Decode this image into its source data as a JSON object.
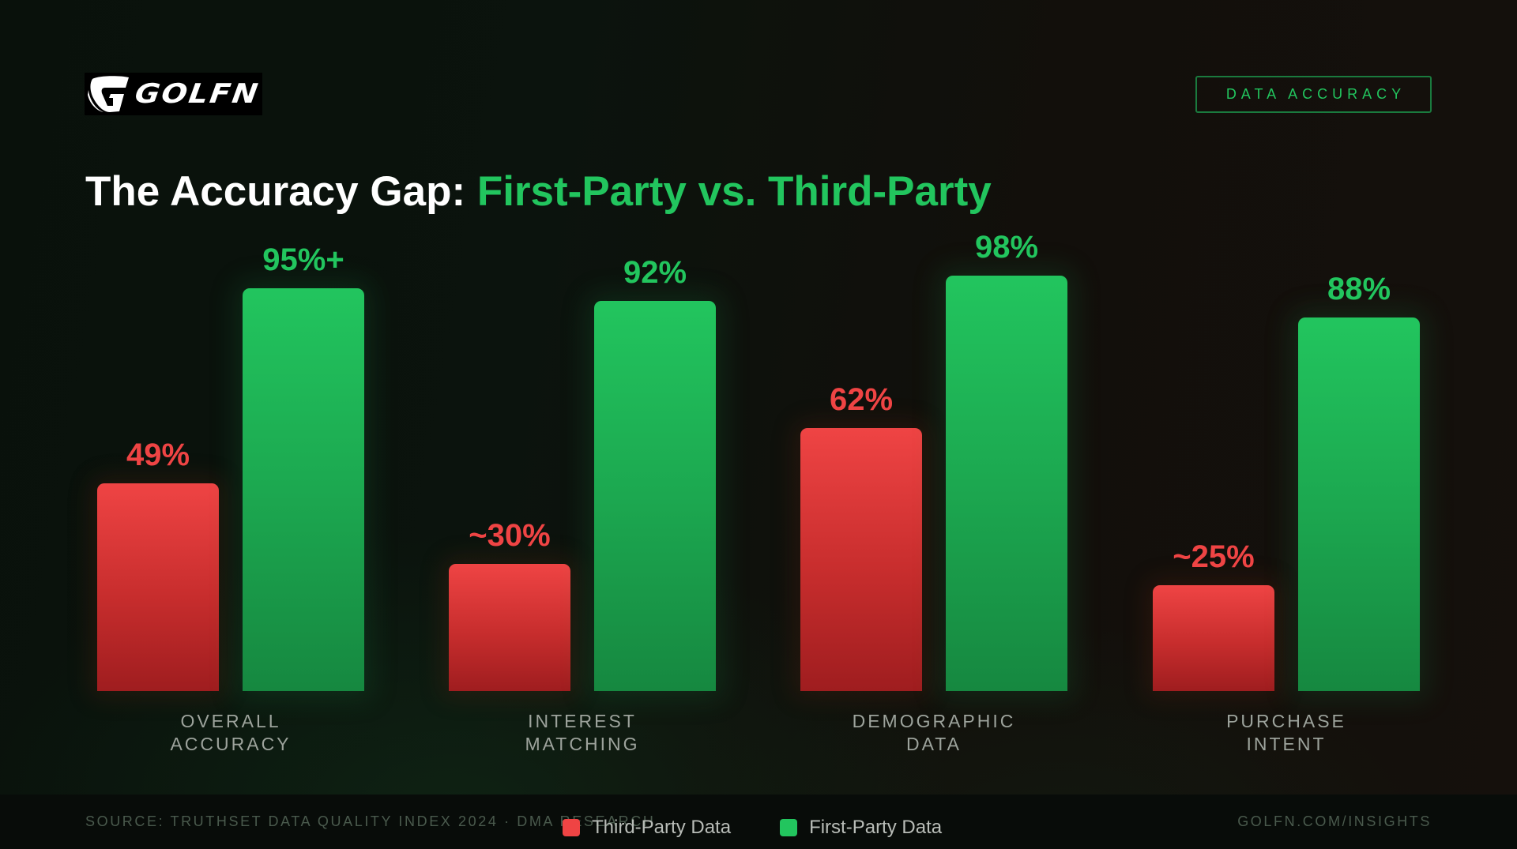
{
  "brand": {
    "name": "GOLFN"
  },
  "badge": {
    "label": "DATA ACCURACY"
  },
  "title": {
    "prefix": "The Accuracy Gap: ",
    "highlight": "First-Party vs. Third-Party"
  },
  "colors": {
    "third_party": "#ef4444",
    "first_party": "#22c55e",
    "background": "#0b120d"
  },
  "chart_data": {
    "type": "bar",
    "title": "The Accuracy Gap: First-Party vs. Third-Party",
    "xlabel": "",
    "ylabel": "",
    "ylim": [
      0,
      100
    ],
    "grid": false,
    "legend_position": "bottom",
    "categories": [
      "OVERALL ACCURACY",
      "INTEREST MATCHING",
      "DEMOGRAPHIC DATA",
      "PURCHASE INTENT"
    ],
    "series": [
      {
        "name": "Third-Party Data",
        "color": "#ef4444",
        "values": [
          49,
          30,
          62,
          25
        ],
        "labels": [
          "49%",
          "~30%",
          "62%",
          "~25%"
        ]
      },
      {
        "name": "First-Party Data",
        "color": "#22c55e",
        "values": [
          95,
          92,
          98,
          88
        ],
        "labels": [
          "95%+",
          "92%",
          "98%",
          "88%"
        ]
      }
    ]
  },
  "categories_display": [
    {
      "line": "OVERALL\nACCURACY"
    },
    {
      "line": "INTEREST\nMATCHING"
    },
    {
      "line": "DEMOGRAPHIC\nDATA"
    },
    {
      "line": "PURCHASE\nINTENT"
    }
  ],
  "legend": [
    {
      "label": "Third-Party Data",
      "color": "#ef4444"
    },
    {
      "label": "First-Party Data",
      "color": "#22c55e"
    }
  ],
  "footer": {
    "source": "SOURCE: TRUTHSET DATA QUALITY INDEX 2024 · DMA RESEARCH",
    "site": "GOLFN.COM/INSIGHTS"
  }
}
